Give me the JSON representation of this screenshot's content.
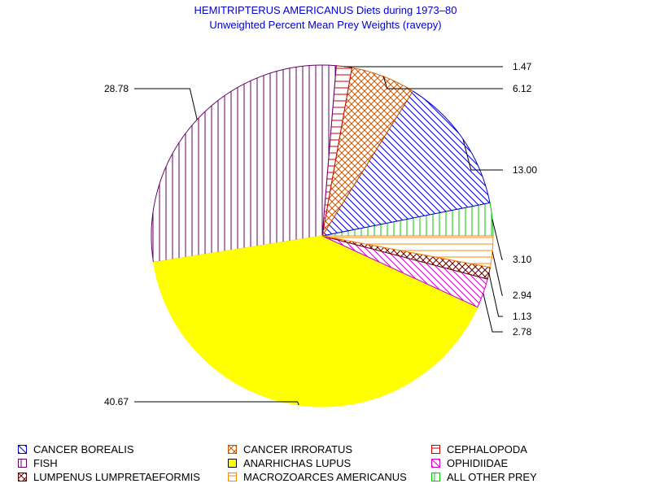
{
  "chart_data": {
    "type": "pie",
    "title": "HEMITRIPTERUS AMERICANUS Diets during 1973–80",
    "subtitle": "Unweighted Percent Mean Prey Weights (ravepy)",
    "slices": [
      {
        "name": "ALL OTHER PREY",
        "value": 3.1,
        "label": "3.10",
        "color": "#00cc00",
        "pattern": "vertical"
      },
      {
        "name": "CANCER BOREALIS",
        "value": 13.0,
        "label": "13.00",
        "color": "#0000cc",
        "pattern": "diag-down"
      },
      {
        "name": "CANCER IRRORATUS",
        "value": 6.12,
        "label": "6.12",
        "color": "#cc5500",
        "pattern": "crosshatch"
      },
      {
        "name": "CEPHALOPODA",
        "value": 1.47,
        "label": "1.47",
        "color": "#cc0000",
        "pattern": "horizontal"
      },
      {
        "name": "FISH",
        "value": 28.78,
        "label": "28.78",
        "color": "#660066",
        "pattern": "vertical"
      },
      {
        "name": "ANARHICHAS LUPUS",
        "value": 40.67,
        "label": "40.67",
        "color": "#ffff00",
        "pattern": "solid"
      },
      {
        "name": "OPHIDIIDAE",
        "value": 2.78,
        "label": "2.78",
        "color": "#cc00cc",
        "pattern": "diag-down"
      },
      {
        "name": "LUMPENUS LUMPRETAEFORMIS",
        "value": 1.13,
        "label": "1.13",
        "color": "#660000",
        "pattern": "crosshatch"
      },
      {
        "name": "MACROZOARCES AMERICANUS",
        "value": 2.94,
        "label": "2.94",
        "color": "#ff8800",
        "pattern": "horizontal"
      }
    ],
    "legend": {
      "position": "bottom",
      "items": [
        {
          "name": "CANCER BOREALIS",
          "color": "#0000cc",
          "pattern": "diag-down"
        },
        {
          "name": "CANCER IRRORATUS",
          "color": "#cc5500",
          "pattern": "crosshatch"
        },
        {
          "name": "CEPHALOPODA",
          "color": "#cc0000",
          "pattern": "horizontal"
        },
        {
          "name": "FISH",
          "color": "#660066",
          "pattern": "vertical"
        },
        {
          "name": "ANARHICHAS LUPUS",
          "color": "#ffff00",
          "pattern": "solid"
        },
        {
          "name": "OPHIDIIDAE",
          "color": "#cc00cc",
          "pattern": "diag-down"
        },
        {
          "name": "LUMPENUS LUMPRETAEFORMIS",
          "color": "#660000",
          "pattern": "crosshatch"
        },
        {
          "name": "MACROZOARCES AMERICANUS",
          "color": "#ff8800",
          "pattern": "horizontal"
        },
        {
          "name": "ALL OTHER PREY",
          "color": "#00cc00",
          "pattern": "vertical"
        }
      ]
    }
  },
  "colors": {
    "title": "#0000cc",
    "leader_line": "#000000",
    "background": "#ffffff"
  }
}
